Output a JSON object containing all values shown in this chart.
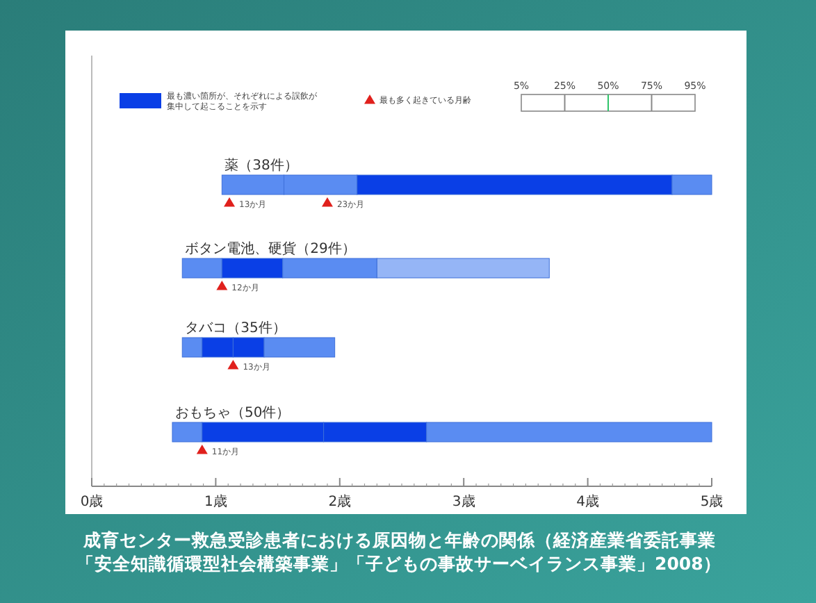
{
  "chart_data": {
    "type": "bar",
    "orientation": "horizontal",
    "title": "成育センター救急受診患者における原因物と年齢の関係（経済産業省委託事業",
    "subtitle": "「安全知識循環型社会構築事業」「子どもの事故サーベイランス事業」2008）",
    "categories": [
      "薬（38件）",
      "ボタン電池、硬貨（29件）",
      "タバコ（35件）",
      "おもちゃ（50件）"
    ],
    "legend": "top left",
    "series": [
      {
        "base": [
          1.05,
          0.73,
          0.73,
          0.65
        ],
        "colors": [
          "#5a8cf2",
          "#5a8cf2",
          "#5a8cf2",
          "#5a8cf2"
        ],
        "values": [
          0.5,
          0.32,
          0.16,
          0.24
        ]
      },
      {
        "base": [
          1.55,
          1.05,
          0.89,
          0.89
        ],
        "colors": [
          "#5a8cf2",
          "#0a3fe6",
          "#0a3fe6",
          "#0a3fe6"
        ],
        "values": [
          0.59,
          0.49,
          0.25,
          0.98
        ]
      },
      {
        "base": [
          2.14,
          1.54,
          1.14,
          1.87
        ],
        "colors": [
          "#0a3fe6",
          "#5a8cf2",
          "#0a3fe6",
          "#0a3fe6"
        ],
        "values": [
          2.54,
          0.76,
          0.25,
          0.83
        ]
      },
      {
        "base": [
          4.68,
          2.3,
          1.39,
          2.7
        ],
        "colors": [
          "#5a8cf2",
          "#95b5f6",
          "#5a8cf2",
          "#5a8cf2"
        ],
        "values": [
          0.32,
          1.39,
          0.57,
          2.3
        ]
      },
      {
        "type": "scatter",
        "name": "最も多く起きている月齢",
        "color": "#e0201c",
        "marker": "triangle",
        "x": [
          "薬（38件）",
          "薬（38件）",
          "ボタン電池、硬貨（29件）",
          "タバコ（35件）",
          "おもちゃ（50件）"
        ],
        "values": [
          1.11,
          1.9,
          1.05,
          1.14,
          0.89
        ]
      }
    ],
    "xlim": [
      0,
      5
    ],
    "xticks": [
      {
        "value": 0,
        "label": "0歳"
      },
      {
        "value": 1,
        "label": "1歳"
      },
      {
        "value": 2,
        "label": "2歳"
      },
      {
        "value": 3,
        "label": "3歳"
      },
      {
        "value": 4,
        "label": "4歳"
      },
      {
        "value": 5,
        "label": "5歳"
      }
    ],
    "annotations": [
      "最も濃い箇所が、それぞれによる誤飲が集中して起こることを示す",
      "5%",
      "25%",
      "50%",
      "75%",
      "95%",
      {
        "text": "13か月",
        "x": 1.11,
        "y": "薬（38件）"
      },
      {
        "text": "23か月",
        "x": 1.9,
        "y": "薬（38件）"
      },
      {
        "text": "12か月",
        "x": 1.05,
        "y": "ボタン電池、硬貨（29件）"
      },
      {
        "text": "13か月",
        "x": 1.14,
        "y": "タバコ（35件）"
      },
      {
        "text": "11か月",
        "x": 0.89,
        "y": "おもちゃ（50件）"
      }
    ]
  }
}
